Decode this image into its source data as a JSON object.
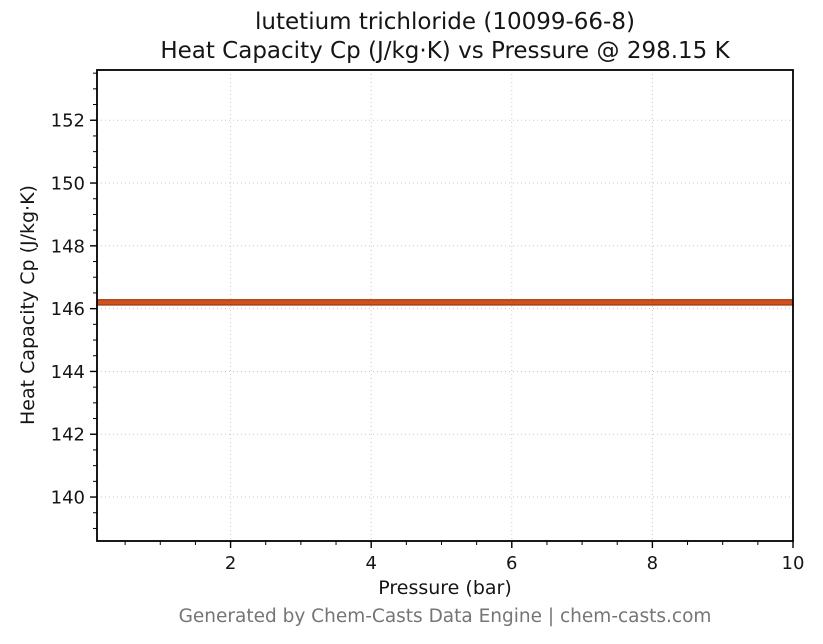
{
  "title": {
    "line1": "lutetium trichloride (10099-66-8)",
    "line2": "Heat Capacity Cp (J/kg·K) vs Pressure @ 298.15 K"
  },
  "footer": "Generated by Chem-Casts Data Engine | chem-casts.com",
  "chart_data": {
    "type": "line",
    "title": "lutetium trichloride (10099-66-8)\nHeat Capacity Cp (J/kg·K) vs Pressure @ 298.15 K",
    "xlabel": "Pressure (bar)",
    "ylabel": "Heat Capacity Cp (J/kg·K)",
    "series": [
      {
        "name": "Heat Capacity Cp",
        "x": [
          0.1,
          10
        ],
        "y": [
          146.2,
          146.2
        ],
        "color": "#d2521f",
        "edge_color": "#9e3a12",
        "linewidth": 4
      }
    ],
    "xlim": [
      0.1,
      10
    ],
    "ylim": [
      138.6,
      153.6
    ],
    "x_ticks": [
      2,
      4,
      6,
      8,
      10
    ],
    "y_ticks": [
      140,
      142,
      144,
      146,
      148,
      150,
      152
    ],
    "x_minor_step": 0.5,
    "y_minor_step": 0.5,
    "grid": {
      "show": true,
      "style": "dotted",
      "color": "#c9c9c9"
    },
    "axes_color": "#000000",
    "tick_label_color": "#151515",
    "legend": "none"
  }
}
